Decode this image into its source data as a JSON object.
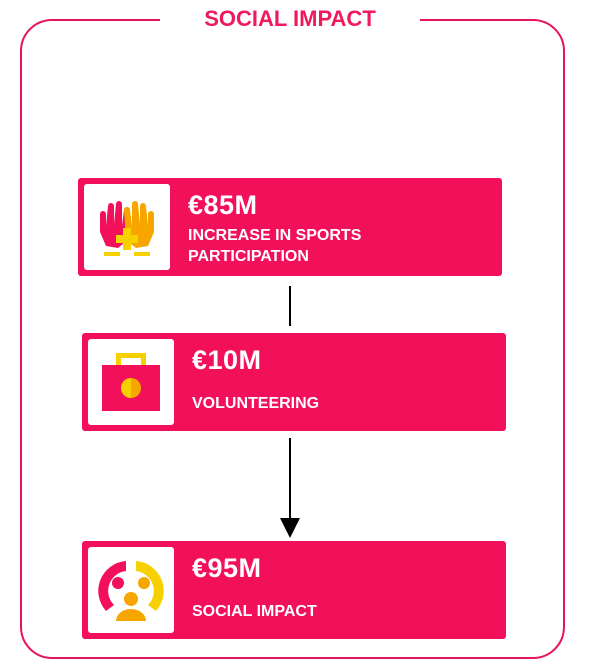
{
  "title": "SOCIAL IMPACT",
  "nodes": [
    {
      "value": "€85M",
      "label": "INCREASE IN SPORTS PARTICIPATION"
    },
    {
      "value": "€10M",
      "label": "VOLUNTEERING"
    },
    {
      "value": "€95M",
      "label": "SOCIAL IMPACT"
    }
  ]
}
